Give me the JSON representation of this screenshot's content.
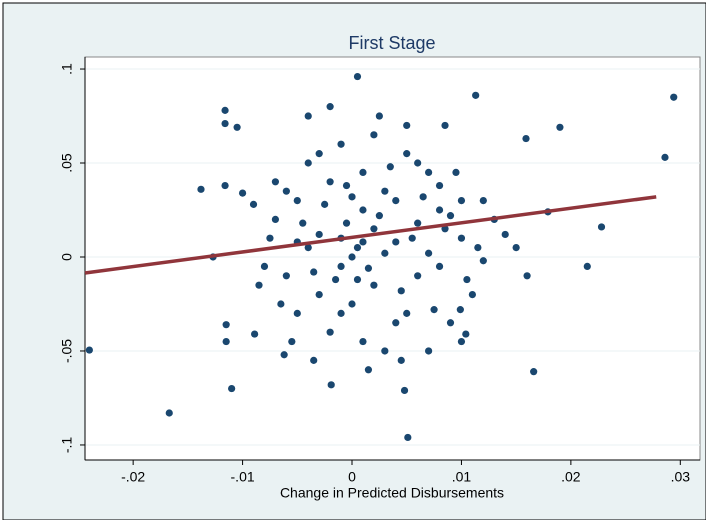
{
  "chart_data": {
    "type": "scatter",
    "title": "First Stage",
    "xlabel": "Change in Predicted Disbursements",
    "color": "#1a476f",
    "x": [
      -0.024,
      -0.0167,
      -0.0138,
      -0.0127,
      -0.0116,
      -0.0116,
      -0.0116,
      -0.011,
      -0.0105,
      -0.0115,
      -0.0115,
      -0.01,
      0.0294,
      0.0286,
      0.019,
      0.0159,
      0.0166,
      0.0051,
      0.0048,
      0.0005,
      0.0113,
      0.0228,
      0.0215,
      0.0179,
      0.0104,
      0.0099,
      -0.0019,
      -0.0062,
      -0.0089,
      -0.007,
      -0.006,
      -0.005,
      -0.004,
      -0.003,
      -0.002,
      -0.001,
      0,
      0.001,
      0.002,
      0.003,
      0.004,
      0.005,
      0.006,
      0.007,
      0.008,
      0.009,
      0.01,
      0.011,
      0.012,
      -0.008,
      -0.006,
      -0.005,
      -0.004,
      -0.003,
      -0.002,
      -0.001,
      0,
      0.001,
      0.002,
      0.003,
      0.004,
      0.005,
      0.006,
      0.007,
      0.008,
      0.009,
      0.01,
      0.012,
      0.013,
      -0.0075,
      -0.0065,
      -0.0045,
      -0.0035,
      -0.0025,
      -0.0015,
      -0.0005,
      0.0005,
      0.0015,
      0.0025,
      0.0035,
      0.0045,
      0.0055,
      0.0065,
      0.0075,
      0.0085,
      0.0095,
      0.0105,
      0.0115,
      0.014,
      -0.009,
      -0.0085,
      -0.007,
      -0.005,
      -0.003,
      -0.001,
      0.001,
      0.002,
      0.003,
      0.004,
      0.006,
      0.008,
      0.01,
      0.015,
      0.016,
      -0.004,
      -0.002,
      0.0025,
      0.005,
      0.0085,
      -0.0055,
      -0.0035,
      0.0015,
      0.0045,
      0.007,
      -0.0005,
      0.0005,
      0,
      0.001,
      -0.001
    ],
    "y": [
      -0.0495,
      -0.083,
      0.036,
      0,
      0.078,
      0.071,
      0.038,
      -0.07,
      0.069,
      -0.036,
      -0.045,
      0.034,
      0.085,
      0.053,
      0.069,
      0.063,
      -0.061,
      -0.096,
      -0.071,
      0.096,
      0.086,
      0.016,
      -0.005,
      0.024,
      -0.041,
      -0.028,
      -0.068,
      -0.052,
      -0.041,
      0.02,
      -0.01,
      0.03,
      0.005,
      -0.02,
      0.04,
      0.01,
      0,
      0.025,
      -0.015,
      0.035,
      0.008,
      -0.03,
      0.018,
      0.045,
      -0.005,
      0.022,
      0.01,
      -0.02,
      0.03,
      -0.005,
      0.035,
      -0.03,
      0.05,
      0.012,
      -0.04,
      0.06,
      -0.025,
      0.045,
      0.015,
      -0.05,
      0.03,
      0.055,
      -0.01,
      0.002,
      0.038,
      -0.035,
      0.03,
      -0.002,
      0.02,
      0.01,
      -0.025,
      0.018,
      -0.008,
      0.028,
      -0.012,
      0.038,
      0.005,
      -0.006,
      0.022,
      0.048,
      -0.018,
      0.01,
      0.032,
      -0.028,
      0.015,
      0.045,
      -0.012,
      0.005,
      0.012,
      0.028,
      -0.015,
      0.04,
      0.008,
      0.055,
      -0.03,
      -0.045,
      0.065,
      0.002,
      -0.035,
      0.05,
      0.025,
      -0.045,
      0.005,
      -0.01,
      0.075,
      0.08,
      0.075,
      0.07,
      0.07,
      -0.045,
      -0.055,
      -0.06,
      -0.055,
      -0.05,
      0.018,
      -0.012,
      0.032,
      0.008,
      -0.005
    ],
    "fit": {
      "color": "#90353b",
      "x": [
        -0.0244,
        0.0278
      ],
      "y": [
        -0.0085,
        0.032
      ]
    },
    "xlim": [
      -0.0244,
      0.0318
    ],
    "ylim": [
      -0.108,
      0.1064
    ],
    "xticks": [
      {
        "value": -0.02,
        "label": "-.02"
      },
      {
        "value": -0.01,
        "label": "-.01"
      },
      0,
      {
        "value": 0.01,
        "label": ".01"
      },
      {
        "value": 0.02,
        "label": ".02"
      },
      {
        "value": 0.03,
        "label": ".03"
      }
    ],
    "yticks": [
      {
        "value": -0.1,
        "label": "-.1"
      },
      {
        "value": -0.05,
        "label": "-.05"
      },
      0,
      {
        "value": 0.05,
        "label": ".05"
      },
      {
        "value": 0.1,
        "label": ".1"
      }
    ],
    "grid": true
  }
}
